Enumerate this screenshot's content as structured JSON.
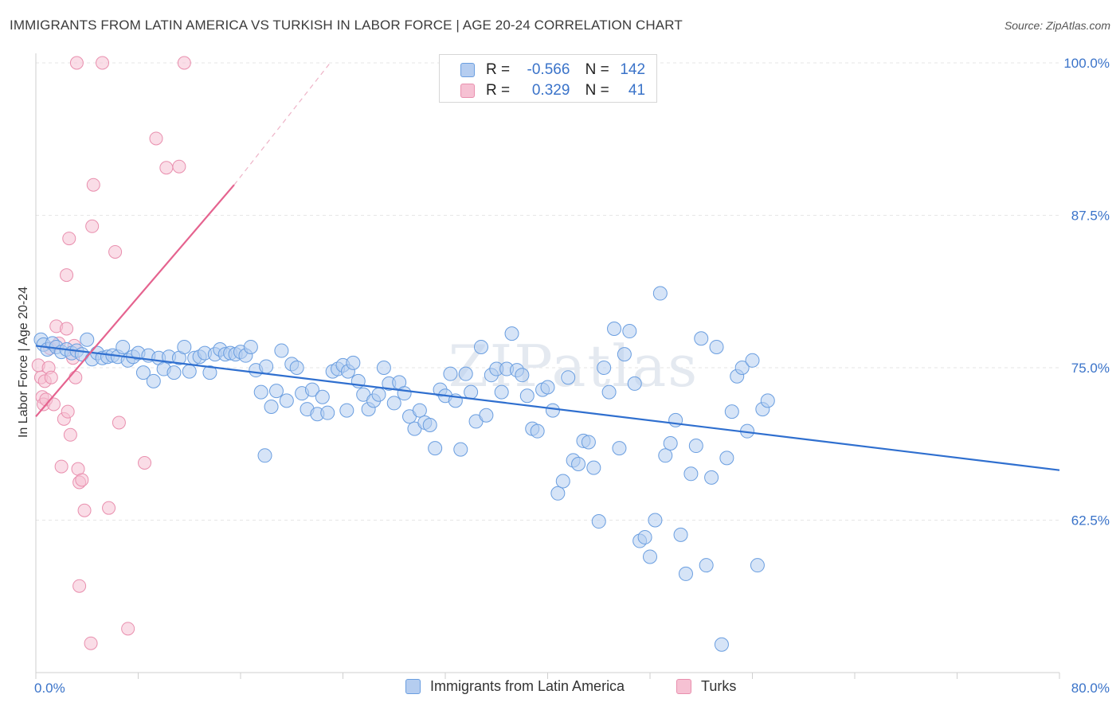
{
  "title": "IMMIGRANTS FROM LATIN AMERICA VS TURKISH IN LABOR FORCE | AGE 20-24 CORRELATION CHART",
  "source": "Source: ZipAtlas.com",
  "watermark": "ZIPatlas",
  "colors": {
    "blue_fill": "#b5cdf0",
    "blue_stroke": "#6a9ee0",
    "blue_line": "#2f6fcf",
    "pink_fill": "#f6c1d3",
    "pink_stroke": "#e98fae",
    "pink_line": "#e5638f",
    "axis_text": "#3a73c9",
    "grid": "#e6e6e6"
  },
  "legend_top": {
    "rows": [
      {
        "series": "Immigrants from Latin America",
        "r_label": "R =",
        "r_value": "-0.566",
        "n_label": "N =",
        "n_value": "142"
      },
      {
        "series": "Turks",
        "r_label": "R =",
        "r_value": "0.329",
        "n_label": "N =",
        "n_value": "41"
      }
    ]
  },
  "legend_bottom": [
    "Immigrants from Latin America",
    "Turks"
  ],
  "chart_data": {
    "type": "scatter",
    "ylabel": "In Labor Force | Age 20-24",
    "xlabel": "",
    "xlim": [
      0,
      80
    ],
    "ylim": [
      50,
      100
    ],
    "x_tick_labels": [
      "0.0%",
      "80.0%"
    ],
    "y_ticks": [
      62.5,
      75.0,
      87.5,
      100.0
    ],
    "y_tick_labels": [
      "62.5%",
      "75.0%",
      "87.5%",
      "100.0%"
    ],
    "grid": true,
    "legend_position": "top-center",
    "series": [
      {
        "name": "Immigrants from Latin America",
        "trend": {
          "x": [
            0,
            80
          ],
          "y": [
            76.8,
            66.6
          ]
        },
        "points": [
          [
            0.4,
            77.3
          ],
          [
            0.6,
            76.9
          ],
          [
            0.9,
            76.5
          ],
          [
            1.3,
            77.0
          ],
          [
            1.6,
            76.7
          ],
          [
            2.0,
            76.3
          ],
          [
            2.4,
            76.5
          ],
          [
            2.8,
            76.2
          ],
          [
            3.2,
            76.4
          ],
          [
            3.6,
            76.1
          ],
          [
            4.0,
            77.3
          ],
          [
            4.4,
            75.7
          ],
          [
            4.8,
            76.2
          ],
          [
            5.2,
            75.8
          ],
          [
            5.6,
            75.9
          ],
          [
            6.0,
            76.0
          ],
          [
            6.4,
            75.9
          ],
          [
            6.8,
            76.7
          ],
          [
            7.2,
            75.6
          ],
          [
            7.6,
            75.9
          ],
          [
            8.0,
            76.2
          ],
          [
            8.4,
            74.6
          ],
          [
            8.8,
            76.0
          ],
          [
            9.2,
            73.9
          ],
          [
            9.6,
            75.8
          ],
          [
            10.0,
            74.9
          ],
          [
            10.4,
            75.9
          ],
          [
            10.8,
            74.6
          ],
          [
            11.2,
            75.8
          ],
          [
            11.6,
            76.7
          ],
          [
            12.0,
            74.7
          ],
          [
            12.4,
            75.8
          ],
          [
            12.8,
            75.9
          ],
          [
            13.2,
            76.2
          ],
          [
            13.6,
            74.6
          ],
          [
            14.0,
            76.1
          ],
          [
            14.4,
            76.5
          ],
          [
            14.8,
            76.1
          ],
          [
            15.2,
            76.2
          ],
          [
            15.6,
            76.1
          ],
          [
            16.0,
            76.3
          ],
          [
            16.4,
            76.0
          ],
          [
            16.8,
            76.7
          ],
          [
            17.2,
            74.8
          ],
          [
            17.6,
            73.0
          ],
          [
            18.0,
            75.1
          ],
          [
            18.4,
            71.8
          ],
          [
            18.8,
            73.1
          ],
          [
            19.2,
            76.4
          ],
          [
            19.6,
            72.3
          ],
          [
            20.0,
            75.3
          ],
          [
            20.4,
            75.0
          ],
          [
            20.8,
            72.9
          ],
          [
            21.2,
            71.6
          ],
          [
            21.6,
            73.2
          ],
          [
            22.0,
            71.2
          ],
          [
            22.4,
            72.6
          ],
          [
            22.8,
            71.3
          ],
          [
            23.2,
            74.7
          ],
          [
            23.6,
            74.9
          ],
          [
            24.0,
            75.2
          ],
          [
            24.4,
            74.7
          ],
          [
            24.8,
            75.4
          ],
          [
            25.2,
            73.9
          ],
          [
            25.6,
            72.8
          ],
          [
            26.0,
            71.6
          ],
          [
            26.4,
            72.3
          ],
          [
            26.8,
            72.8
          ],
          [
            27.2,
            75.0
          ],
          [
            27.6,
            73.7
          ],
          [
            28.0,
            72.1
          ],
          [
            28.4,
            73.8
          ],
          [
            28.8,
            72.9
          ],
          [
            29.2,
            71.0
          ],
          [
            29.6,
            70.0
          ],
          [
            30.0,
            71.5
          ],
          [
            30.4,
            70.5
          ],
          [
            30.8,
            70.3
          ],
          [
            31.2,
            68.4
          ],
          [
            31.6,
            73.2
          ],
          [
            32.0,
            72.7
          ],
          [
            32.4,
            74.5
          ],
          [
            32.8,
            72.3
          ],
          [
            33.2,
            68.3
          ],
          [
            33.6,
            74.5
          ],
          [
            34.0,
            73.0
          ],
          [
            34.4,
            70.6
          ],
          [
            34.8,
            76.7
          ],
          [
            35.2,
            71.1
          ],
          [
            35.6,
            74.4
          ],
          [
            36.0,
            74.9
          ],
          [
            36.4,
            73.0
          ],
          [
            36.8,
            74.9
          ],
          [
            37.2,
            77.8
          ],
          [
            37.6,
            74.8
          ],
          [
            38.0,
            74.4
          ],
          [
            38.4,
            72.7
          ],
          [
            38.8,
            70.0
          ],
          [
            39.2,
            69.8
          ],
          [
            39.6,
            73.2
          ],
          [
            40.0,
            73.4
          ],
          [
            40.4,
            71.5
          ],
          [
            40.8,
            64.7
          ],
          [
            41.2,
            65.7
          ],
          [
            41.6,
            74.2
          ],
          [
            42.0,
            67.4
          ],
          [
            42.4,
            67.1
          ],
          [
            42.8,
            69.0
          ],
          [
            43.2,
            68.9
          ],
          [
            43.6,
            66.8
          ],
          [
            44.0,
            62.4
          ],
          [
            44.4,
            75.0
          ],
          [
            44.8,
            73.0
          ],
          [
            45.2,
            78.2
          ],
          [
            45.6,
            68.4
          ],
          [
            46.0,
            76.1
          ],
          [
            46.4,
            78.0
          ],
          [
            46.8,
            73.7
          ],
          [
            47.2,
            60.8
          ],
          [
            47.6,
            61.1
          ],
          [
            48.0,
            59.5
          ],
          [
            48.4,
            62.5
          ],
          [
            48.8,
            81.1
          ],
          [
            49.2,
            67.8
          ],
          [
            49.6,
            68.8
          ],
          [
            50.0,
            70.7
          ],
          [
            50.4,
            61.3
          ],
          [
            50.8,
            58.1
          ],
          [
            51.2,
            66.3
          ],
          [
            51.6,
            68.6
          ],
          [
            52.0,
            77.4
          ],
          [
            52.4,
            58.8
          ],
          [
            52.8,
            66.0
          ],
          [
            53.2,
            76.7
          ],
          [
            53.6,
            52.3
          ],
          [
            54.0,
            67.6
          ],
          [
            54.4,
            71.4
          ],
          [
            54.8,
            74.3
          ],
          [
            55.2,
            75.0
          ],
          [
            55.6,
            69.8
          ],
          [
            56.0,
            75.6
          ],
          [
            56.4,
            58.8
          ],
          [
            56.8,
            71.6
          ],
          [
            57.2,
            72.3
          ],
          [
            24.3,
            71.5
          ],
          [
            17.9,
            67.8
          ]
        ]
      },
      {
        "name": "Turks",
        "trend": {
          "x": [
            0,
            15.5
          ],
          "y": [
            71.0,
            90.0
          ]
        },
        "trend_extension": {
          "x": [
            15.5,
            23
          ],
          "y": [
            90.0,
            100.0
          ]
        },
        "points": [
          [
            0.2,
            75.2
          ],
          [
            0.4,
            74.2
          ],
          [
            0.5,
            72.6
          ],
          [
            0.6,
            72.0
          ],
          [
            0.7,
            73.9
          ],
          [
            0.8,
            72.4
          ],
          [
            1.0,
            75.0
          ],
          [
            1.1,
            76.6
          ],
          [
            1.2,
            74.2
          ],
          [
            1.4,
            72.0
          ],
          [
            1.6,
            78.4
          ],
          [
            1.8,
            77.0
          ],
          [
            2.0,
            66.9
          ],
          [
            2.2,
            70.8
          ],
          [
            2.4,
            78.2
          ],
          [
            2.5,
            71.4
          ],
          [
            2.7,
            69.5
          ],
          [
            2.9,
            75.8
          ],
          [
            3.1,
            74.2
          ],
          [
            3.3,
            66.7
          ],
          [
            3.4,
            65.6
          ],
          [
            3.6,
            65.8
          ],
          [
            3.8,
            63.3
          ],
          [
            2.4,
            82.6
          ],
          [
            2.6,
            85.6
          ],
          [
            3.2,
            100.0
          ],
          [
            4.5,
            90.0
          ],
          [
            4.4,
            86.6
          ],
          [
            5.2,
            100.0
          ],
          [
            5.7,
            63.5
          ],
          [
            6.2,
            84.5
          ],
          [
            6.5,
            70.5
          ],
          [
            7.2,
            53.6
          ],
          [
            8.5,
            67.2
          ],
          [
            9.4,
            93.8
          ],
          [
            10.2,
            91.4
          ],
          [
            11.2,
            91.5
          ],
          [
            11.6,
            100.0
          ],
          [
            3.4,
            57.1
          ],
          [
            4.3,
            52.4
          ],
          [
            3.0,
            76.8
          ]
        ]
      }
    ]
  }
}
